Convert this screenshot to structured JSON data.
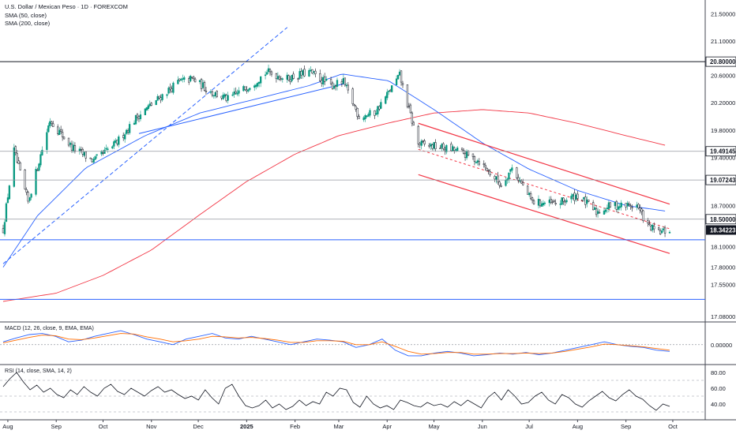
{
  "header": {
    "title": "U.S. Dollar / Mexican Peso · 1D · FOREXCOM",
    "sma50_label": "SMA (50, close)",
    "sma200_label": "SMA (200, close)"
  },
  "colors": {
    "up": "#089981",
    "down": "#131722",
    "sma50": "#2962ff",
    "sma200": "#f23645",
    "channel": "#f23645",
    "hline_black": "#131722",
    "hline_gray": "#9598a1",
    "hline_blue": "#2962ff",
    "macd": "#2962ff",
    "signal": "#ff6d00",
    "rsi": "#131722",
    "last_price_bg": "#131722"
  },
  "chart_data": [
    {
      "type": "candlestick",
      "symbol": "U.S. Dollar / Mexican Peso",
      "interval": "1D",
      "source": "FOREXCOM",
      "ylim": [
        17.0,
        21.7
      ],
      "yticks": [
        "21.50000",
        "21.10000",
        "20.60000",
        "20.20000",
        "19.80000",
        "19.40000",
        "18.70000",
        "18.10000",
        "17.80000",
        "17.55000",
        "17.08000"
      ],
      "xticks": [
        "Aug",
        "Sep",
        "Oct",
        "Nov",
        "Dec",
        "2025",
        "Feb",
        "Mar",
        "Apr",
        "May",
        "Jun",
        "Jul",
        "Aug",
        "Sep",
        "Oct"
      ],
      "horizontal_levels": [
        {
          "value": 20.8,
          "label": "20.80000",
          "style": "black"
        },
        {
          "value": 19.49145,
          "label": "19.49145",
          "style": "gray"
        },
        {
          "value": 19.07243,
          "label": "19.07243",
          "style": "gray"
        },
        {
          "value": 18.5,
          "label": "18.50000",
          "style": "gray"
        },
        {
          "value": 18.2,
          "label": "",
          "style": "blue"
        },
        {
          "value": 17.33,
          "label": "",
          "style": "blue"
        }
      ],
      "last_price": {
        "value": 18.34223,
        "label": "18.34223"
      },
      "path_anchors": [
        {
          "date": "2024-07-29",
          "close": 18.35
        },
        {
          "date": "2024-08-05",
          "close": 19.5
        },
        {
          "date": "2024-08-14",
          "close": 18.75
        },
        {
          "date": "2024-08-28",
          "close": 19.95
        },
        {
          "date": "2024-09-11",
          "close": 19.55
        },
        {
          "date": "2024-09-25",
          "close": 19.35
        },
        {
          "date": "2024-10-09",
          "close": 19.6
        },
        {
          "date": "2024-10-23",
          "close": 20.0
        },
        {
          "date": "2024-11-05",
          "close": 20.25
        },
        {
          "date": "2024-11-18",
          "close": 20.5
        },
        {
          "date": "2024-11-27",
          "close": 20.55
        },
        {
          "date": "2024-12-10",
          "close": 20.35
        },
        {
          "date": "2024-12-20",
          "close": 20.25
        },
        {
          "date": "2025-01-06",
          "close": 20.5
        },
        {
          "date": "2025-01-14",
          "close": 20.65
        },
        {
          "date": "2025-01-27",
          "close": 20.55
        },
        {
          "date": "2025-02-10",
          "close": 20.65
        },
        {
          "date": "2025-02-24",
          "close": 20.45
        },
        {
          "date": "2025-03-04",
          "close": 20.5
        },
        {
          "date": "2025-03-14",
          "close": 20.0
        },
        {
          "date": "2025-03-24",
          "close": 20.05
        },
        {
          "date": "2025-04-02",
          "close": 20.35
        },
        {
          "date": "2025-04-09",
          "close": 20.6
        },
        {
          "date": "2025-04-21",
          "close": 19.6
        },
        {
          "date": "2025-05-05",
          "close": 19.55
        },
        {
          "date": "2025-05-16",
          "close": 19.5
        },
        {
          "date": "2025-05-30",
          "close": 19.35
        },
        {
          "date": "2025-06-13",
          "close": 19.0
        },
        {
          "date": "2025-06-20",
          "close": 19.25
        },
        {
          "date": "2025-07-03",
          "close": 18.75
        },
        {
          "date": "2025-07-18",
          "close": 18.72
        },
        {
          "date": "2025-08-01",
          "close": 18.85
        },
        {
          "date": "2025-08-13",
          "close": 18.6
        },
        {
          "date": "2025-08-22",
          "close": 18.7
        },
        {
          "date": "2025-09-08",
          "close": 18.7
        },
        {
          "date": "2025-09-15",
          "close": 18.4
        },
        {
          "date": "2025-09-22",
          "close": 18.3
        },
        {
          "date": "2025-09-29",
          "close": 18.34
        }
      ],
      "sma50_anchors": [
        {
          "date": "2024-07-29",
          "value": 17.8
        },
        {
          "date": "2024-08-20",
          "value": 18.55
        },
        {
          "date": "2024-09-20",
          "value": 19.25
        },
        {
          "date": "2024-10-28",
          "value": 19.72
        },
        {
          "date": "2024-12-02",
          "value": 20.05
        },
        {
          "date": "2025-01-06",
          "value": 20.25
        },
        {
          "date": "2025-02-10",
          "value": 20.45
        },
        {
          "date": "2025-03-03",
          "value": 20.62
        },
        {
          "date": "2025-04-02",
          "value": 20.52
        },
        {
          "date": "2025-05-01",
          "value": 20.1
        },
        {
          "date": "2025-06-02",
          "value": 19.6
        },
        {
          "date": "2025-07-01",
          "value": 19.23
        },
        {
          "date": "2025-08-01",
          "value": 18.92
        },
        {
          "date": "2025-09-01",
          "value": 18.7
        },
        {
          "date": "2025-09-26",
          "value": 18.62
        }
      ],
      "sma200_anchors": [
        {
          "date": "2024-07-29",
          "value": 17.3
        },
        {
          "date": "2024-09-01",
          "value": 17.42
        },
        {
          "date": "2024-10-01",
          "value": 17.68
        },
        {
          "date": "2024-11-01",
          "value": 18.05
        },
        {
          "date": "2024-12-01",
          "value": 18.55
        },
        {
          "date": "2025-01-01",
          "value": 19.05
        },
        {
          "date": "2025-02-01",
          "value": 19.45
        },
        {
          "date": "2025-03-01",
          "value": 19.72
        },
        {
          "date": "2025-04-01",
          "value": 19.9
        },
        {
          "date": "2025-05-01",
          "value": 20.05
        },
        {
          "date": "2025-06-01",
          "value": 20.1
        },
        {
          "date": "2025-07-01",
          "value": 20.05
        },
        {
          "date": "2025-08-01",
          "value": 19.9
        },
        {
          "date": "2025-09-01",
          "value": 19.72
        },
        {
          "date": "2025-09-26",
          "value": 19.58
        }
      ],
      "trendlines": [
        {
          "style": "dashed",
          "color": "sma50",
          "from": {
            "date": "2024-07-29",
            "value": 17.85
          },
          "to": {
            "date": "2025-01-27",
            "value": 21.3
          }
        },
        {
          "style": "solid",
          "color": "sma50",
          "from": {
            "date": "2024-10-24",
            "value": 19.75
          },
          "to": {
            "date": "2025-03-05",
            "value": 20.48
          }
        },
        {
          "style": "solid",
          "color": "channel",
          "from": {
            "date": "2025-04-21",
            "value": 19.9
          },
          "to": {
            "date": "2025-09-29",
            "value": 18.72
          }
        },
        {
          "style": "solid",
          "color": "channel",
          "from": {
            "date": "2025-04-21",
            "value": 19.15
          },
          "to": {
            "date": "2025-09-29",
            "value": 18.0
          }
        },
        {
          "style": "dashed",
          "color": "channel",
          "from": {
            "date": "2025-04-21",
            "value": 19.52
          },
          "to": {
            "date": "2025-09-29",
            "value": 18.36
          }
        }
      ]
    },
    {
      "type": "line",
      "name": "MACD (12, 26, close, 9, EMA, EMA)",
      "label": "MACD (12, 26, close, 9, EMA, EMA)",
      "ylim": [
        -0.3,
        0.35
      ],
      "yticks": [
        "0.00000"
      ],
      "zero_line": true,
      "series": [
        {
          "name": "MACD",
          "color": "macd",
          "values": [
            0.05,
            0.12,
            0.18,
            0.2,
            0.15,
            0.05,
            0.08,
            0.15,
            0.2,
            0.25,
            0.18,
            0.1,
            0.05,
            0.0,
            0.1,
            0.15,
            0.2,
            0.12,
            0.1,
            0.15,
            0.1,
            0.05,
            0.0,
            0.05,
            0.1,
            0.08,
            0.05,
            -0.05,
            0.0,
            0.1,
            -0.1,
            -0.2,
            -0.2,
            -0.15,
            -0.12,
            -0.15,
            -0.2,
            -0.18,
            -0.15,
            -0.17,
            -0.14,
            -0.18,
            -0.15,
            -0.1,
            -0.05,
            0.0,
            0.05,
            0.0,
            -0.03,
            -0.05,
            -0.1,
            -0.12
          ]
        },
        {
          "name": "Signal",
          "color": "signal",
          "values": [
            0.03,
            0.08,
            0.13,
            0.17,
            0.16,
            0.1,
            0.09,
            0.12,
            0.16,
            0.2,
            0.19,
            0.14,
            0.1,
            0.05,
            0.07,
            0.1,
            0.15,
            0.14,
            0.12,
            0.13,
            0.11,
            0.08,
            0.04,
            0.04,
            0.07,
            0.07,
            0.06,
            0.0,
            0.0,
            0.05,
            -0.03,
            -0.12,
            -0.17,
            -0.16,
            -0.14,
            -0.14,
            -0.17,
            -0.17,
            -0.16,
            -0.16,
            -0.15,
            -0.16,
            -0.15,
            -0.12,
            -0.08,
            -0.04,
            0.01,
            0.0,
            -0.02,
            -0.04,
            -0.07,
            -0.1
          ]
        }
      ]
    },
    {
      "type": "line",
      "name": "RSI (14, close, SMA, 14, 2)",
      "label": "RSI (14, close, SMA, 14, 2)",
      "ylim": [
        20,
        90
      ],
      "yticks": [
        "80.00",
        "60.00",
        "40.00"
      ],
      "bands": [
        70,
        50,
        30
      ],
      "series": [
        {
          "name": "RSI",
          "color": "rsi",
          "values": [
            62,
            72,
            80,
            68,
            58,
            64,
            55,
            60,
            52,
            48,
            58,
            52,
            62,
            55,
            50,
            60,
            65,
            56,
            52,
            60,
            55,
            50,
            57,
            62,
            55,
            58,
            52,
            47,
            50,
            45,
            58,
            48,
            40,
            60,
            65,
            50,
            38,
            35,
            38,
            45,
            35,
            40,
            33,
            37,
            45,
            38,
            43,
            40,
            55,
            50,
            60,
            58,
            42,
            36,
            50,
            40,
            35,
            38,
            33,
            45,
            42,
            38,
            36,
            42,
            38,
            40,
            36,
            43,
            38,
            45,
            40,
            35,
            48,
            55,
            45,
            58,
            50,
            40,
            42,
            50,
            55,
            45,
            40,
            52,
            48,
            40,
            36,
            44,
            50,
            56,
            48,
            44,
            52,
            58,
            50,
            46,
            38,
            32,
            40,
            37
          ]
        }
      ]
    }
  ]
}
